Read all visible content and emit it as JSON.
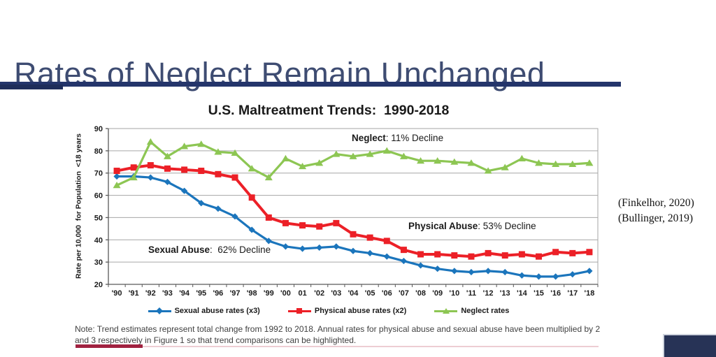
{
  "slide": {
    "title": "Rates of Neglect Remain Unchanged",
    "citation_line1": "(Finkelhor, 2020)",
    "citation_line2": "(Bullinger, 2019)",
    "note_line1": "Note: Trend estimates represent total change from 1992 to 2018. Annual rates for physical abuse and sexual abuse have been multiplied by 2",
    "note_line2": "and 3 respectively in Figure 1 so that trend comparisons can be highlighted.",
    "accent_colors": {
      "navy": "#24356B",
      "maroon": "#A12240",
      "pink": "#EDCDD3"
    }
  },
  "chart_data": {
    "type": "line",
    "title": "U.S. Maltreatment Trends:  1990-2018",
    "ylabel": "Rate per 10,000  for Population  <18 years",
    "xlabel": "",
    "ylim": [
      20,
      90
    ],
    "y_ticks": [
      90,
      80,
      70,
      60,
      50,
      40,
      30,
      20
    ],
    "grid": true,
    "legend_position": "bottom",
    "categories": [
      "'90",
      "'91",
      "'92",
      "'93",
      "'94",
      "'95",
      "'96",
      "'97",
      "'98",
      "'99",
      "'00",
      "01",
      "'02",
      "'03",
      "'04",
      "'05",
      "'06",
      "'07",
      "'08",
      "'09",
      "'10",
      "'11",
      "'12",
      "'13",
      "'14",
      "'15",
      "'16",
      "'17",
      "'18"
    ],
    "series": [
      {
        "name": "Sexual abuse rates (x3)",
        "color": "#1B75BC",
        "marker": "diamond",
        "values": [
          68.5,
          68.5,
          68,
          66,
          62,
          56.5,
          54,
          50.5,
          44.5,
          39.5,
          37,
          36,
          36.5,
          37,
          35,
          34,
          32.5,
          30.5,
          28.5,
          27,
          26,
          25.5,
          26,
          25.5,
          24,
          23.5,
          23.5,
          24.5,
          26
        ]
      },
      {
        "name": "Physical abuse rates (x2)",
        "color": "#EC2027",
        "marker": "square",
        "values": [
          71,
          72.5,
          73.5,
          72,
          71.5,
          71,
          69.5,
          68,
          59,
          50,
          47.5,
          46.5,
          46,
          47.5,
          42.5,
          41,
          39.5,
          35.5,
          33.5,
          33.5,
          33,
          32.5,
          34,
          33,
          33.5,
          32.5,
          34.5,
          34,
          34.5
        ]
      },
      {
        "name": "Neglect rates",
        "color": "#8DC653",
        "marker": "triangle",
        "values": [
          64.5,
          68,
          84,
          77.5,
          82,
          83,
          79.5,
          79,
          72,
          68,
          76.5,
          73,
          74.5,
          78.5,
          77.5,
          78.5,
          80,
          77.5,
          75.5,
          75.5,
          75,
          74.5,
          71,
          72.5,
          76.5,
          74.5,
          74,
          74,
          74.5
        ]
      }
    ],
    "annotations": [
      {
        "bold": "Neglect",
        "rest": ": 11% Decline"
      },
      {
        "bold": "Physical Abuse",
        "rest": ": 53% Decline"
      },
      {
        "bold": "Sexual Abuse",
        "rest": ":  62% Decline"
      }
    ]
  }
}
